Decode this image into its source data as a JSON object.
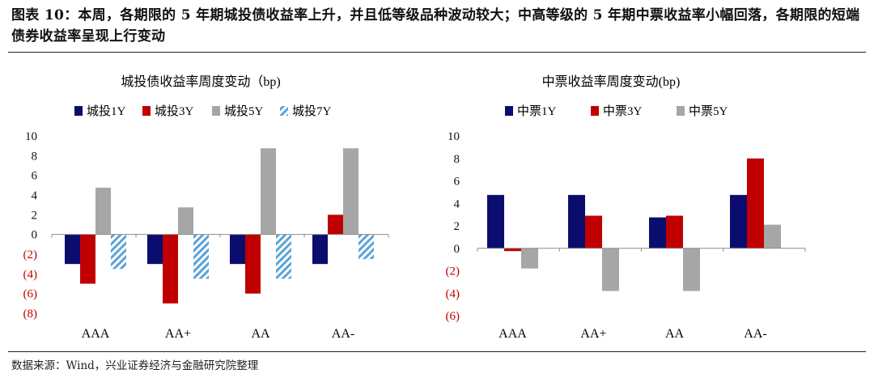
{
  "figure": {
    "heading": "图表 10：本周，各期限的 5 年期城投债收益率上升，并且低等级品种波动较大；中高等级的 5 年期中票收益率小幅回落，各期限的短端债券收益率呈现上行变动",
    "source": "数据来源：Wind，兴业证券经济与金融研究院整理"
  },
  "chart_data": [
    {
      "type": "bar",
      "title": "城投债收益率周度变动（bp)",
      "categories": [
        "AAA",
        "AA+",
        "AA",
        "AA-"
      ],
      "series": [
        {
          "name": "城投1Y",
          "color": "#0b0d6e",
          "pattern": "solid",
          "values": [
            -3,
            -3,
            -3,
            -3
          ]
        },
        {
          "name": "城投3Y",
          "color": "#c00000",
          "pattern": "solid",
          "values": [
            -5,
            -7,
            -6,
            2
          ]
        },
        {
          "name": "城投5Y",
          "color": "#a6a6a6",
          "pattern": "solid",
          "values": [
            4.75,
            2.75,
            8.75,
            8.75
          ]
        },
        {
          "name": "城投7Y",
          "color": "#5ba3d6",
          "pattern": "hatch",
          "values": [
            -3.5,
            -4.5,
            -4.5,
            -2.5
          ]
        }
      ],
      "ylim": [
        -8,
        10
      ],
      "yticks": [
        {
          "value": 10,
          "label": "10"
        },
        {
          "value": 8,
          "label": "8"
        },
        {
          "value": 6,
          "label": "6"
        },
        {
          "value": 4,
          "label": "4"
        },
        {
          "value": 2,
          "label": "2"
        },
        {
          "value": 0,
          "label": "0"
        },
        {
          "value": -2,
          "label": "(2)"
        },
        {
          "value": -4,
          "label": "(4)"
        },
        {
          "value": -6,
          "label": "(6)"
        },
        {
          "value": -8,
          "label": "(8)"
        }
      ],
      "negative_label_color": "#c00000",
      "legend_position": "top"
    },
    {
      "type": "bar",
      "title": "中票收益率周度变动(bp)",
      "categories": [
        "AAA",
        "AA+",
        "AA",
        "AA-"
      ],
      "series": [
        {
          "name": "中票1Y",
          "color": "#0b0d6e",
          "pattern": "solid",
          "values": [
            4.75,
            4.75,
            2.75,
            4.75
          ]
        },
        {
          "name": "中票3Y",
          "color": "#c00000",
          "pattern": "solid",
          "values": [
            -0.25,
            2.9,
            2.9,
            8
          ]
        },
        {
          "name": "中票5Y",
          "color": "#a6a6a6",
          "pattern": "solid",
          "values": [
            -1.8,
            -3.8,
            -3.8,
            2.1
          ]
        }
      ],
      "ylim": [
        -6,
        10
      ],
      "yticks": [
        {
          "value": 10,
          "label": "10"
        },
        {
          "value": 8,
          "label": "8"
        },
        {
          "value": 6,
          "label": "6"
        },
        {
          "value": 4,
          "label": "4"
        },
        {
          "value": 2,
          "label": "2"
        },
        {
          "value": 0,
          "label": "0"
        },
        {
          "value": -2,
          "label": "(2)"
        },
        {
          "value": -4,
          "label": "(4)"
        },
        {
          "value": -6,
          "label": "(6)"
        }
      ],
      "negative_label_color": "#c00000",
      "legend_position": "top"
    }
  ]
}
